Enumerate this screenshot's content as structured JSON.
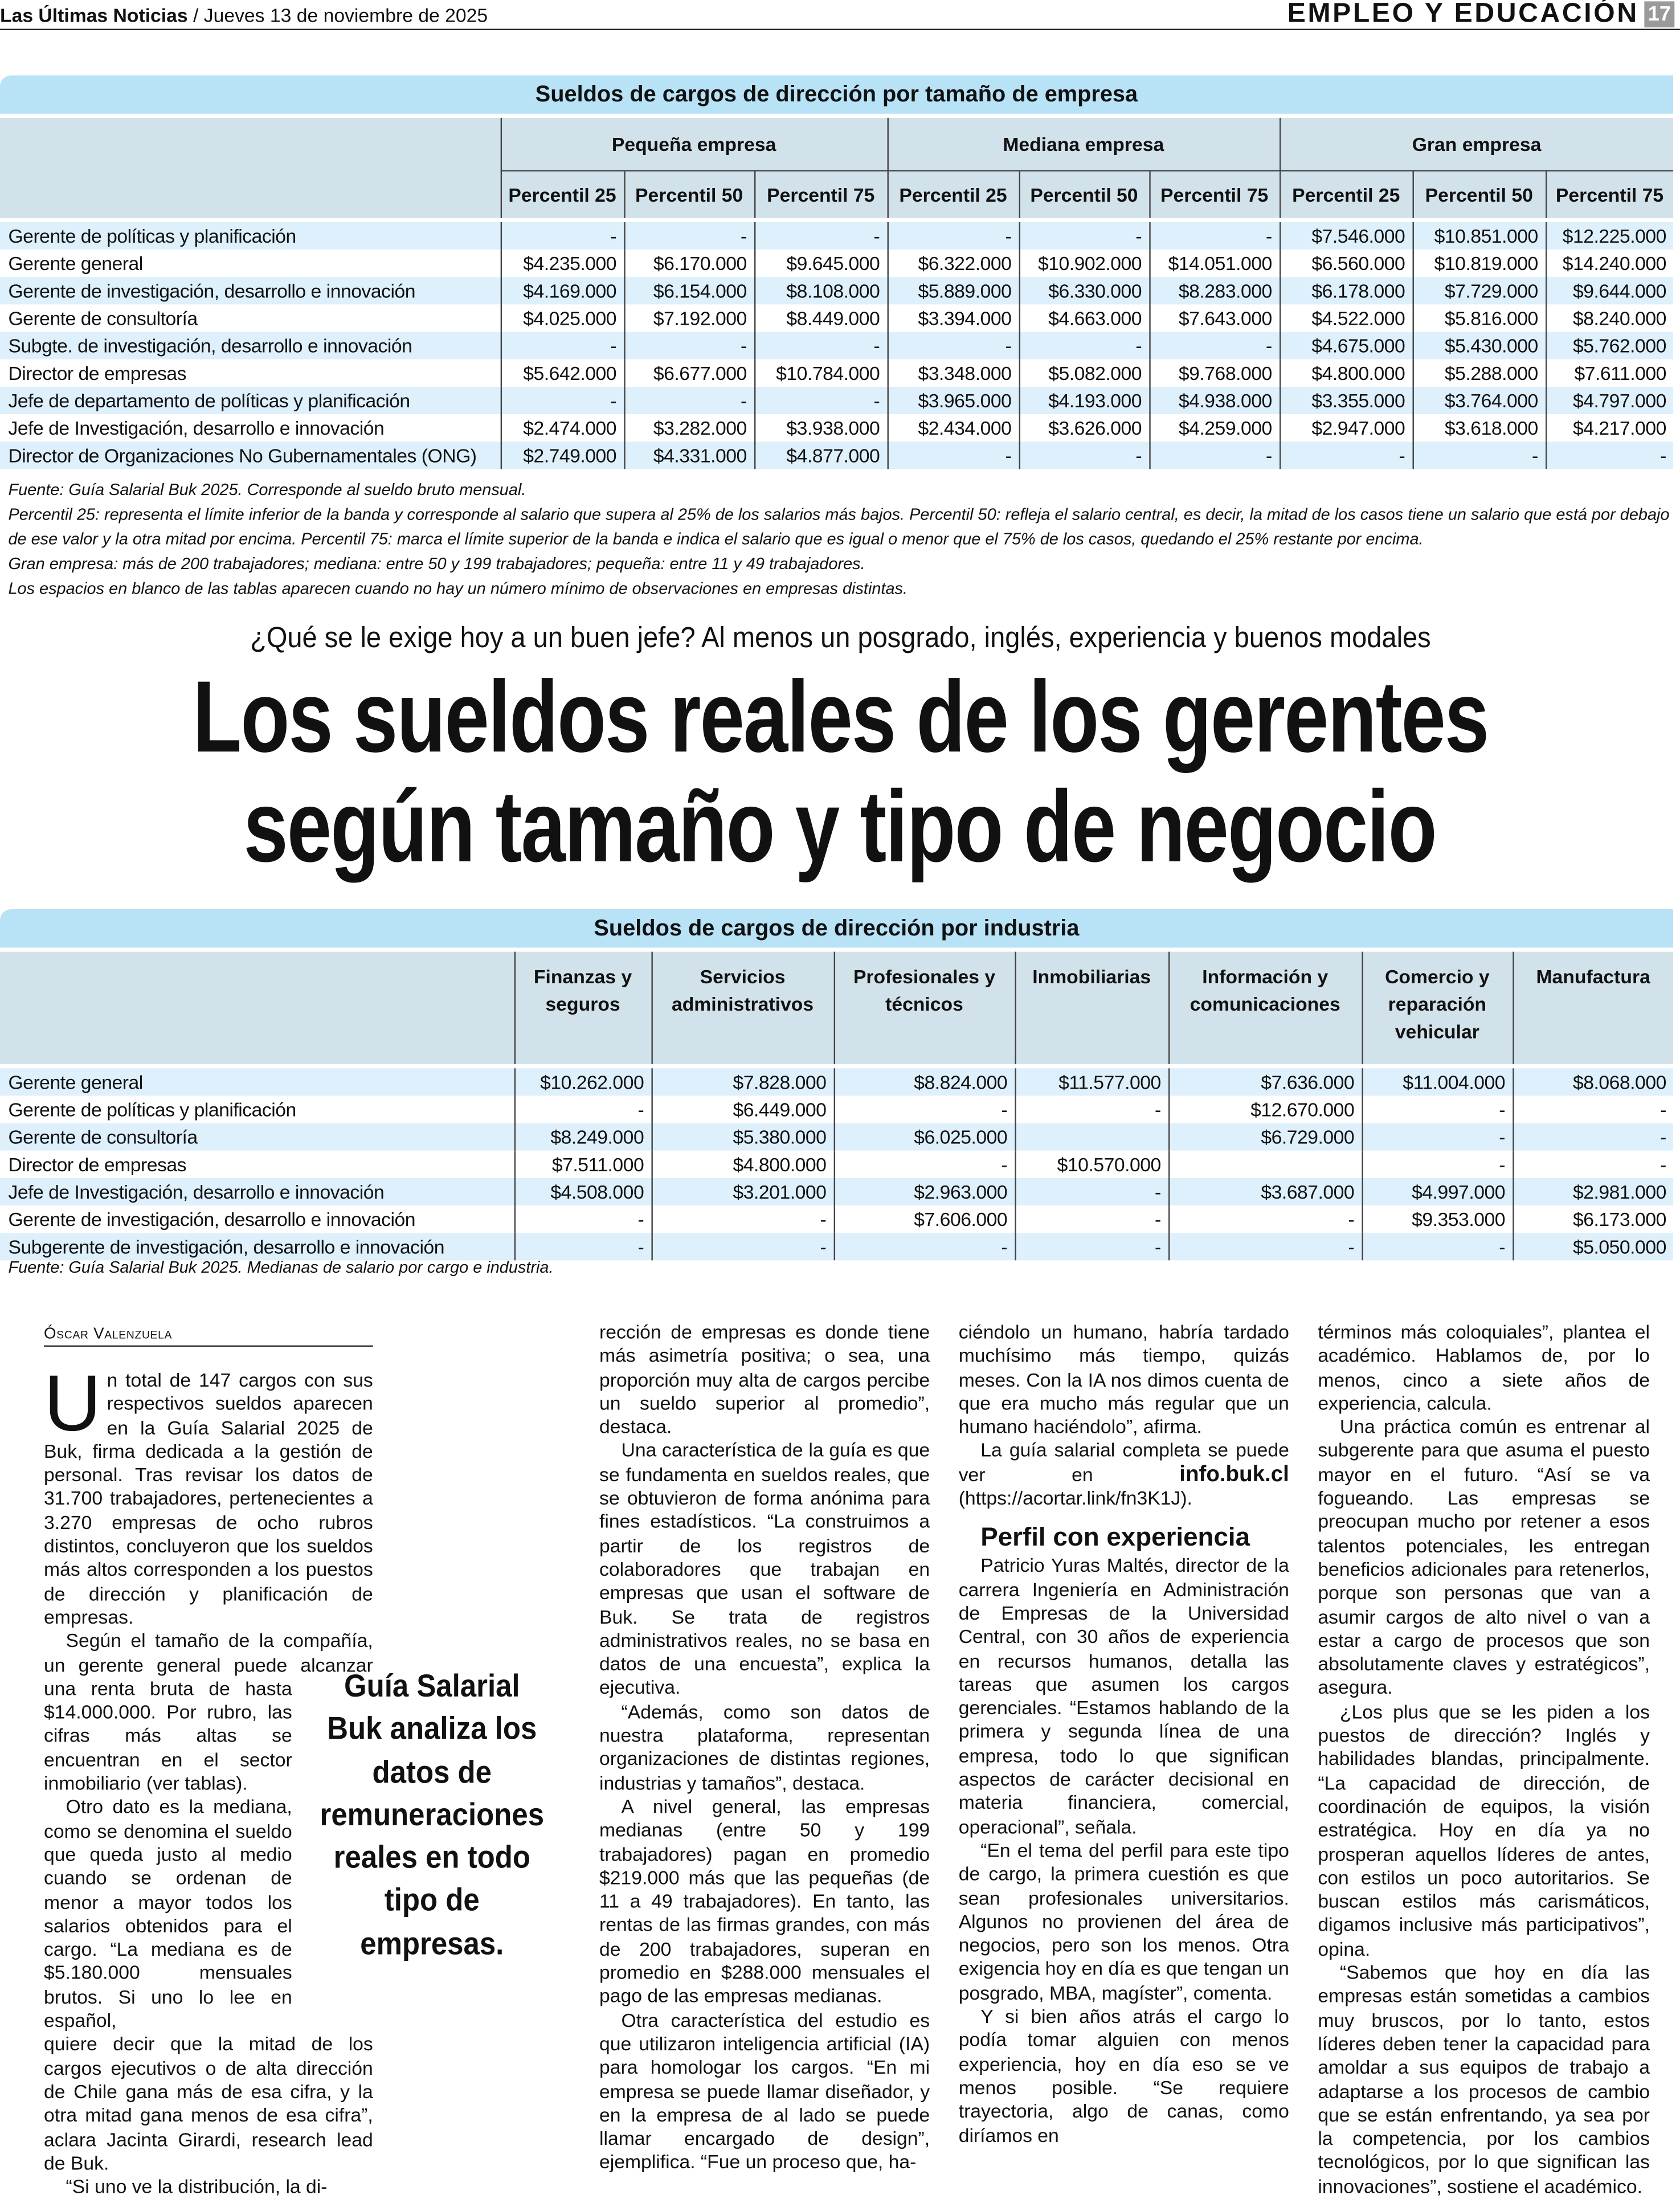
{
  "masthead": {
    "paper": "Las Últimas Noticias",
    "date": "/ Jueves 13 de noviembre de 2025",
    "section": "EMPLEO Y EDUCACIÓN",
    "page_number": "17"
  },
  "table_size": {
    "title": "Sueldos de cargos de dirección por tamaño de empresa",
    "groups": [
      "Pequeña empresa",
      "Mediana empresa",
      "Gran empresa"
    ],
    "percentiles": [
      "Percentil 25",
      "Percentil 50",
      "Percentil 75",
      "Percentil 25",
      "Percentil 50",
      "Percentil 75",
      "Percentil 25",
      "Percentil 50",
      "Percentil 75"
    ],
    "rows": [
      {
        "label": "Gerente de políticas y planificación",
        "values": [
          "-",
          "-",
          "-",
          "-",
          "-",
          "-",
          "$7.546.000",
          "$10.851.000",
          "$12.225.000"
        ]
      },
      {
        "label": "Gerente general",
        "values": [
          "$4.235.000",
          "$6.170.000",
          "$9.645.000",
          "$6.322.000",
          "$10.902.000",
          "$14.051.000",
          "$6.560.000",
          "$10.819.000",
          "$14.240.000"
        ]
      },
      {
        "label": "Gerente de investigación, desarrollo e innovación",
        "values": [
          "$4.169.000",
          "$6.154.000",
          "$8.108.000",
          "$5.889.000",
          "$6.330.000",
          "$8.283.000",
          "$6.178.000",
          "$7.729.000",
          "$9.644.000"
        ]
      },
      {
        "label": "Gerente de consultoría",
        "values": [
          "$4.025.000",
          "$7.192.000",
          "$8.449.000",
          "$3.394.000",
          "$4.663.000",
          "$7.643.000",
          "$4.522.000",
          "$5.816.000",
          "$8.240.000"
        ]
      },
      {
        "label": "Subgte. de investigación, desarrollo e innovación",
        "values": [
          "-",
          "-",
          "-",
          "-",
          "-",
          "-",
          "$4.675.000",
          "$5.430.000",
          "$5.762.000"
        ]
      },
      {
        "label": "Director de empresas",
        "values": [
          "$5.642.000",
          "$6.677.000",
          "$10.784.000",
          "$3.348.000",
          "$5.082.000",
          "$9.768.000",
          "$4.800.000",
          "$5.288.000",
          "$7.611.000"
        ]
      },
      {
        "label": "Jefe de departamento de políticas y planificación",
        "values": [
          "-",
          "-",
          "-",
          "$3.965.000",
          "$4.193.000",
          "$4.938.000",
          "$3.355.000",
          "$3.764.000",
          "$4.797.000"
        ]
      },
      {
        "label": "Jefe de Investigación, desarrollo e innovación",
        "values": [
          "$2.474.000",
          "$3.282.000",
          "$3.938.000",
          "$2.434.000",
          "$3.626.000",
          "$4.259.000",
          "$2.947.000",
          "$3.618.000",
          "$4.217.000"
        ]
      },
      {
        "label": "Director de Organizaciones No Gubernamentales (ONG)",
        "values": [
          "$2.749.000",
          "$4.331.000",
          "$4.877.000",
          "-",
          "-",
          "-",
          "-",
          "-",
          "-"
        ]
      }
    ],
    "notes": [
      "Fuente: Guía Salarial Buk 2025. Corresponde al sueldo bruto mensual.",
      "Percentil 25: representa el límite inferior de la banda y corresponde al salario que supera al 25% de los salarios más bajos. Percentil 50: refleja el salario central, es decir, la mitad de los casos tiene un salario que está por debajo de ese valor y la otra mitad por encima. Percentil 75:  marca el límite superior de la banda e indica el salario que es igual o menor que el 75% de los casos, quedando el 25% restante por encima.",
      "Gran empresa: más de 200 trabajadores; mediana: entre 50 y 199 trabajadores; pequeña: entre 11 y 49 trabajadores.",
      "Los espacios en blanco de las tablas aparecen cuando no hay un número mínimo de observaciones en empresas distintas."
    ]
  },
  "kicker": "¿Qué se le exige hoy a un buen jefe? Al menos un posgrado, inglés, experiencia y buenos modales",
  "headline": [
    "Los sueldos reales de los gerentes",
    "según tamaño y tipo de negocio"
  ],
  "table_industry": {
    "title": "Sueldos de cargos de dirección por industria",
    "columns": [
      [
        "Finanzas y",
        "seguros"
      ],
      [
        "Servicios",
        "administrativos"
      ],
      [
        "Profesionales y",
        "técnicos"
      ],
      [
        "Inmobiliarias"
      ],
      [
        "Información y",
        "comunicaciones"
      ],
      [
        "Comercio y",
        "reparación",
        "vehicular"
      ],
      [
        "Manufactura"
      ]
    ],
    "rows": [
      {
        "label": "Gerente general",
        "values": [
          "$10.262.000",
          "$7.828.000",
          "$8.824.000",
          "$11.577.000",
          "$7.636.000",
          "$11.004.000",
          "$8.068.000"
        ]
      },
      {
        "label": "Gerente de políticas y planificación",
        "values": [
          "-",
          "$6.449.000",
          "-",
          "-",
          "$12.670.000",
          "-",
          "-"
        ]
      },
      {
        "label": "Gerente de consultoría",
        "values": [
          "$8.249.000",
          "$5.380.000",
          "$6.025.000",
          "",
          "$6.729.000",
          "-",
          "-"
        ]
      },
      {
        "label": "Director de empresas",
        "values": [
          "$7.511.000",
          "$4.800.000",
          "-",
          "$10.570.000",
          "",
          "-",
          "-"
        ]
      },
      {
        "label": "Jefe de Investigación, desarrollo e innovación",
        "values": [
          "$4.508.000",
          "$3.201.000",
          "$2.963.000",
          "-",
          "$3.687.000",
          "$4.997.000",
          "$2.981.000"
        ]
      },
      {
        "label": "Gerente de investigación, desarrollo e innovación",
        "values": [
          "-",
          "-",
          "$7.606.000",
          "-",
          "-",
          "$9.353.000",
          "$6.173.000"
        ]
      },
      {
        "label": "Subgerente de investigación, desarrollo e innovación",
        "values": [
          "-",
          "-",
          "-",
          "-",
          "-",
          "-",
          "$5.050.000"
        ]
      }
    ],
    "note": "Fuente: Guía Salarial Buk 2025. Medianas de salario por cargo e industria."
  },
  "article": {
    "byline": "Óscar Valenzuela",
    "pull_quote": "Guía Salarial Buk analiza los datos de remuneraciones reales en todo tipo de empresas.",
    "col1_a": [
      {
        "text": "Un total de 147 cargos con sus respectivos sueldos aparecen en la Guía Salarial 2025 de Buk, firma dedicada a la gestión de personal. Tras revisar los datos de 31.700 trabajadores, pertenecientes a 3.270 empresas de ocho rubros distintos, concluyeron que los sueldos más altos corresponden a los puestos de dirección y planificación de empresas."
      },
      {
        "text": "Según el tamaño de la compañía, un gerente general puede alcanzar"
      }
    ],
    "col1_b": [
      {
        "text": "una renta bruta de hasta $14.000.000. Por rubro, las cifras más altas se encuentran en el sector inmobiliario (ver tablas)."
      },
      {
        "text": "Otro dato es la mediana, como se denomina el sueldo que queda justo al medio cuando se ordenan de menor a mayor todos los salarios obtenidos para el cargo. “La mediana es de $5.180.000 mensuales brutos. Si uno lo lee en español,"
      }
    ],
    "col1_c": [
      {
        "text": "quiere decir que la mitad de los cargos ejecutivos o de alta dirección de Chile gana más de esa cifra, y la otra mitad gana menos de esa cifra”, aclara Jacinta Girardi, research lead de Buk."
      },
      {
        "text": "“Si uno ve la distribución, la di-"
      }
    ],
    "col2": [
      {
        "text": "rección de empresas es donde tiene más asimetría positiva; o sea, una proporción muy alta de cargos percibe un sueldo superior al promedio”, destaca."
      },
      {
        "text": "Una característica de la guía es que se fundamenta en sueldos reales, que se obtuvieron de forma anónima para fines estadísticos. “La construimos a partir de los registros de colaboradores que trabajan en empresas que usan el software de Buk. Se trata de registros administrativos reales, no se basa en datos de una encuesta”, explica la ejecutiva."
      },
      {
        "text": "“Además, como son datos de nuestra plataforma, representan organizaciones de distintas regiones, industrias y tamaños”, destaca."
      },
      {
        "text": "A nivel general, las empresas medianas (entre 50 y 199 trabajadores) pagan en promedio $219.000 más que las pequeñas (de 11 a 49 trabajadores). En tanto, las rentas de las firmas grandes, con más de 200 trabajadores, superan en promedio en $288.000 mensuales el pago de las empresas medianas."
      },
      {
        "text": "Otra característica del estudio es que utilizaron inteligencia artificial (IA) para homologar los cargos. “En mi empresa se puede llamar diseñador, y en la empresa de al lado se puede llamar encargado de design”, ejemplifica. “Fue un proceso que, ha-"
      }
    ],
    "col3_a": [
      {
        "text": "ciéndolo un humano, habría tardado muchísimo más tiempo, quizás meses. Con la IA nos dimos cuenta de que era mucho más regular que un humano haciéndolo”, afirma."
      }
    ],
    "col3_link": {
      "before": "La guía salarial completa se puede ver en ",
      "link": "info.buk.cl",
      "after": " (https://acortar.link/fn3K1J)."
    },
    "col3_subhead": "Perfil con experiencia",
    "col3_b": [
      {
        "text": "Patricio Yuras Maltés, director de la carrera Ingeniería en Administración de Empresas de la Universidad Central, con 30 años de experiencia en recursos humanos, detalla las tareas que asumen los cargos gerenciales. “Estamos hablando de la primera y segunda línea de una empresa, todo lo que significan aspectos de carácter decisional en materia financiera, comercial, operacional”, señala."
      },
      {
        "text": "“En el tema del perfil para este tipo de cargo, la primera cuestión es que sean profesionales universitarios. Algunos no provienen del área de negocios, pero son los menos. Otra exigencia hoy en día es que tengan un posgrado, MBA, magíster”, comenta."
      },
      {
        "text": "Y si bien años atrás el cargo lo podía tomar alguien con menos experiencia, hoy en día eso se ve menos posible. “Se requiere trayectoria, algo de canas, como diríamos en"
      }
    ],
    "col4": [
      {
        "text": "términos más coloquiales”, plantea el académico. Hablamos de, por lo menos, cinco a siete años de experiencia, calcula."
      },
      {
        "text": "Una práctica común es entrenar al subgerente para que asuma el puesto mayor en el futuro. “Así se va fogueando. Las empresas se preocupan mucho por retener a esos talentos potenciales, les entregan beneficios adicionales para retenerlos, porque son personas que van a asumir cargos de alto nivel o van a estar a cargo de procesos que son absolutamente claves y estratégicos”, asegura."
      },
      {
        "text": "¿Los plus que se les piden a los puestos de dirección? Inglés y habilidades blandas, principalmente. “La capacidad de dirección, de coordinación de equipos, la visión estratégica. Hoy en día ya no prosperan aquellos líderes de antes, con estilos un poco autoritarios. Se buscan estilos más carismáticos, digamos inclusive más participativos”, opina."
      },
      {
        "text": "“Sabemos que hoy en día las empresas están sometidas a cambios muy bruscos, por lo tanto, estos líderes deben tener la capacidad para amoldar a sus equipos de trabajo a adaptarse a los procesos de cambio que se están enfrentando, ya sea por la competencia, por los cambios tecnológicos, por lo que significan las innovaciones”, sostiene el académico."
      }
    ]
  },
  "colors": {
    "title_band": "#b8e2f6",
    "header_band": "#d2e2eb",
    "row_stripe": "#ddf0fb",
    "page_badge": "#9a9a9a"
  }
}
